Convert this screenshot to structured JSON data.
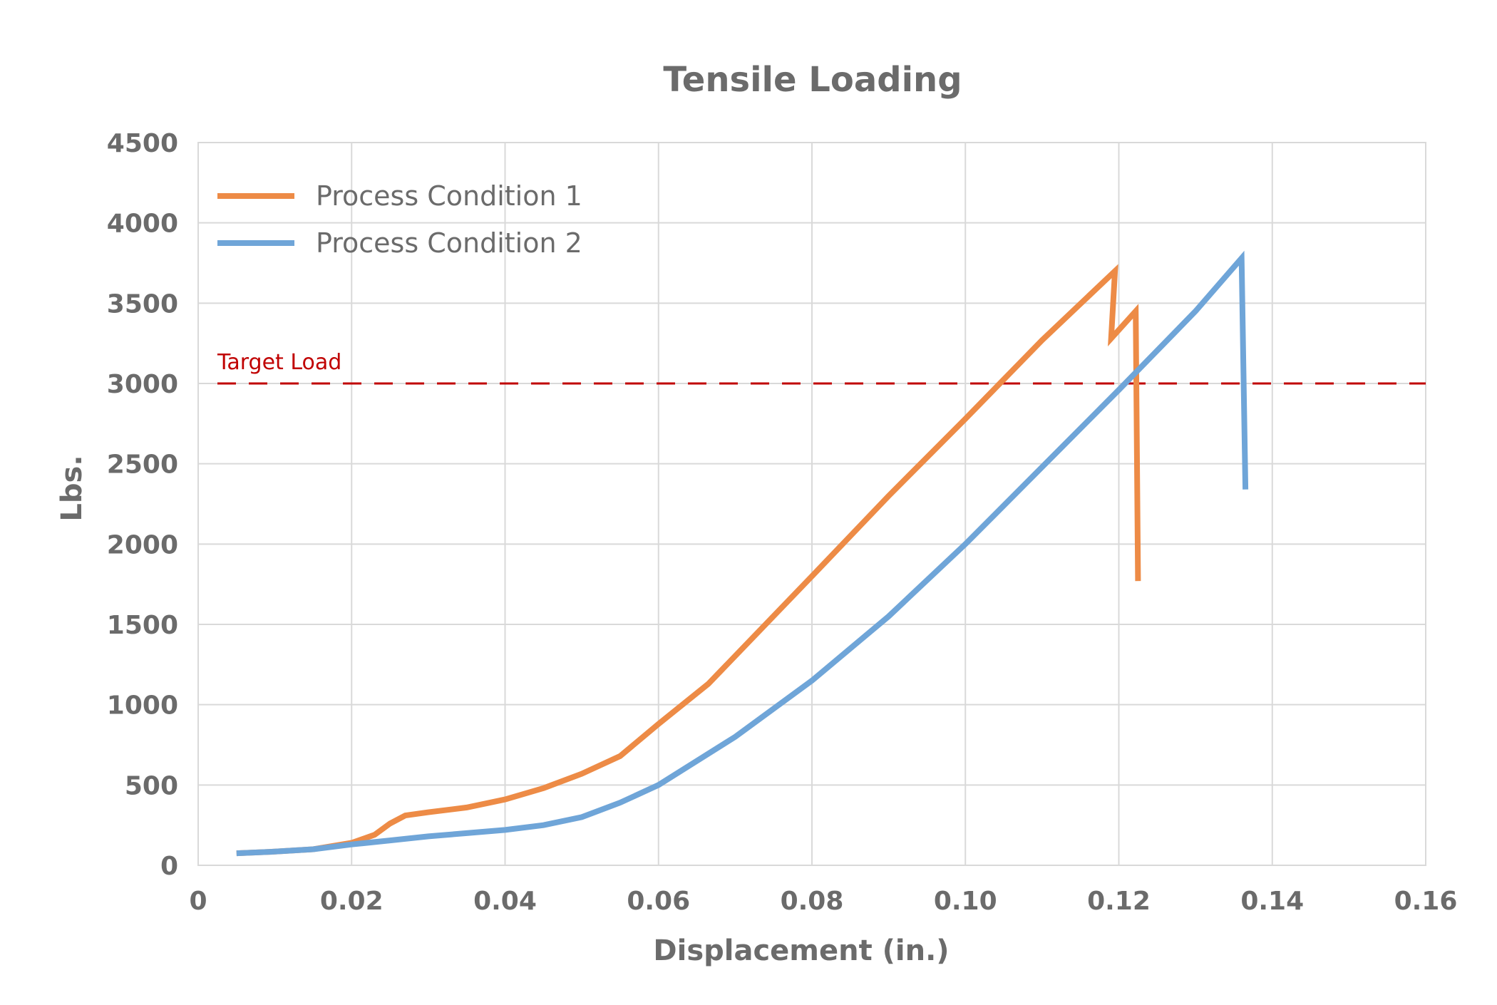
{
  "chart_data": {
    "type": "line",
    "title": "Tensile Loading",
    "xlabel": "Displacement (in.)",
    "ylabel": "Lbs.",
    "xlim": [
      0,
      0.16
    ],
    "ylim": [
      0,
      4500
    ],
    "x_ticks": [
      0,
      0.02,
      0.04,
      0.06,
      0.08,
      0.1,
      0.12,
      0.14,
      0.16
    ],
    "x_tick_labels": [
      "0",
      "0.02",
      "0.04",
      "0.06",
      "0.08",
      "0.10",
      "0.12",
      "0.14",
      "0.16"
    ],
    "y_ticks": [
      0,
      500,
      1000,
      1500,
      2000,
      2500,
      3000,
      3500,
      4000,
      4500
    ],
    "y_tick_labels": [
      "0",
      "500",
      "1000",
      "1500",
      "2000",
      "2500",
      "3000",
      "3500",
      "4000",
      "4500"
    ],
    "grid": true,
    "legend_position": "top-left",
    "series": [
      {
        "name": "Process Condition 1",
        "color": "#ed8b46",
        "x": [
          0.005,
          0.01,
          0.015,
          0.02,
          0.023,
          0.025,
          0.027,
          0.03,
          0.035,
          0.04,
          0.045,
          0.05,
          0.055,
          0.06,
          0.0665,
          0.08,
          0.09,
          0.1,
          0.11,
          0.1195,
          0.119,
          0.1222,
          0.1225
        ],
        "y": [
          75,
          85,
          100,
          140,
          190,
          260,
          310,
          330,
          360,
          410,
          480,
          570,
          680,
          880,
          1130,
          1800,
          2300,
          2780,
          3270,
          3700,
          3280,
          3450,
          1770
        ]
      },
      {
        "name": "Process Condition 2",
        "color": "#6fa5d8",
        "x": [
          0.005,
          0.01,
          0.015,
          0.02,
          0.025,
          0.03,
          0.035,
          0.04,
          0.045,
          0.05,
          0.055,
          0.06,
          0.07,
          0.08,
          0.09,
          0.1,
          0.11,
          0.12,
          0.13,
          0.136,
          0.1365
        ],
        "y": [
          75,
          85,
          100,
          130,
          155,
          180,
          200,
          220,
          250,
          300,
          390,
          500,
          800,
          1150,
          1550,
          2000,
          2480,
          2960,
          3450,
          3780,
          2340
        ]
      }
    ],
    "reference_line": {
      "y": 3000,
      "label": "Target Load",
      "color": "#c00000",
      "style": "dashed"
    }
  }
}
